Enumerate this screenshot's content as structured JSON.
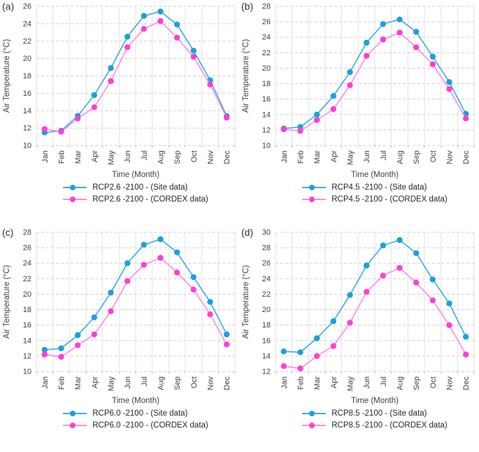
{
  "figure": {
    "xlabel": "Time (Month)",
    "ylabel": "Air Temperature (°C)"
  },
  "colors": {
    "site_line": "#35AEE4",
    "site_marker": "#1BA0DC",
    "cordex_line": "#FF8BE4",
    "cordex_marker": "#FF3ED6",
    "grid_dashed": "#cfcfcf",
    "grid_vertical": "#e2e2e2",
    "axis_text": "#3f3f3f"
  },
  "chart_data": [
    {
      "type": "line",
      "panel_label": "(a)",
      "xlabel": "Time (Month)",
      "ylabel": "Air Temperature (°C)",
      "categories": [
        "Jan",
        "Feb",
        "Mar",
        "Apr",
        "May",
        "Jun",
        "Jul",
        "Aug",
        "Sep",
        "Oct",
        "Nov",
        "Dec"
      ],
      "ylim": [
        10,
        26
      ],
      "ytick_step": 2,
      "grid": "horizontal-dashed, vertical-solid",
      "legend_position": "bottom",
      "series": [
        {
          "name": "RCP2.6 -2100 - (Site data)",
          "line_color": "#35AEE4",
          "marker_color": "#1BA0DC",
          "values": [
            11.5,
            11.7,
            13.4,
            15.8,
            18.9,
            22.5,
            24.9,
            25.4,
            23.9,
            20.9,
            17.5,
            13.4
          ]
        },
        {
          "name": "RCP2.6 -2100 - (CORDEX data)",
          "line_color": "#FF8BE4",
          "marker_color": "#FF3ED6",
          "values": [
            11.9,
            11.6,
            13.1,
            14.4,
            17.4,
            21.3,
            23.4,
            24.3,
            22.4,
            20.2,
            17.0,
            13.2
          ]
        }
      ]
    },
    {
      "type": "line",
      "panel_label": "(b)",
      "xlabel": "Time (Month)",
      "ylabel": "Air Temperature (°C)",
      "categories": [
        "Jan",
        "Feb",
        "Mar",
        "Apr",
        "May",
        "Jun",
        "Jul",
        "Aug",
        "Sep",
        "Oct",
        "Nov",
        "Dec"
      ],
      "ylim": [
        10,
        28
      ],
      "ytick_step": 2,
      "grid": "horizontal-dashed, vertical-solid",
      "legend_position": "bottom",
      "series": [
        {
          "name": "RCP4.5 -2100 - (Site data)",
          "line_color": "#35AEE4",
          "marker_color": "#1BA0DC",
          "values": [
            12.2,
            12.4,
            14.0,
            16.4,
            19.5,
            23.3,
            25.7,
            26.3,
            24.7,
            21.5,
            18.2,
            14.1
          ]
        },
        {
          "name": "RCP4.5 -2100 - (CORDEX data)",
          "line_color": "#FF8BE4",
          "marker_color": "#FF3ED6",
          "values": [
            12.1,
            11.9,
            13.3,
            14.7,
            17.8,
            21.6,
            23.7,
            24.6,
            22.7,
            20.5,
            17.3,
            13.5
          ]
        }
      ]
    },
    {
      "type": "line",
      "panel_label": "(c)",
      "xlabel": "Time (Month)",
      "ylabel": "Air Temperature (°C)",
      "categories": [
        "Jan",
        "Feb",
        "Mar",
        "Apr",
        "May",
        "Jun",
        "Jul",
        "Aug",
        "Sep",
        "Oct",
        "Nov",
        "Dec"
      ],
      "ylim": [
        10,
        28
      ],
      "ytick_step": 2,
      "grid": "horizontal-dashed, vertical-solid",
      "legend_position": "bottom",
      "series": [
        {
          "name": "RCP6.0 -2100 - (Site data)",
          "line_color": "#35AEE4",
          "marker_color": "#1BA0DC",
          "values": [
            12.8,
            13.0,
            14.7,
            17.0,
            20.2,
            24.0,
            26.4,
            27.1,
            25.4,
            22.2,
            19.0,
            14.8
          ]
        },
        {
          "name": "RCP6.0 -2100 - (CORDEX data)",
          "line_color": "#FF8BE4",
          "marker_color": "#FF3ED6",
          "values": [
            12.2,
            11.9,
            13.4,
            14.8,
            17.8,
            21.7,
            23.8,
            24.7,
            22.8,
            20.6,
            17.4,
            13.5
          ]
        }
      ]
    },
    {
      "type": "line",
      "panel_label": "(d)",
      "xlabel": "Time (Month)",
      "ylabel": "Air Temperature (°C)",
      "categories": [
        "Jan",
        "Feb",
        "Mar",
        "Apr",
        "May",
        "Jun",
        "Jul",
        "Aug",
        "Sep",
        "Oct",
        "Nov",
        "Dec"
      ],
      "ylim": [
        12,
        30
      ],
      "ytick_step": 2,
      "grid": "horizontal-dashed, vertical-solid",
      "legend_position": "bottom",
      "series": [
        {
          "name": "RCP8.5 -2100 - (Site data)",
          "line_color": "#35AEE4",
          "marker_color": "#1BA0DC",
          "values": [
            14.6,
            14.5,
            16.3,
            18.5,
            21.9,
            25.7,
            28.3,
            29.0,
            27.3,
            23.9,
            20.8,
            16.5
          ]
        },
        {
          "name": "RCP8.5 -2100 - (CORDEX data)",
          "line_color": "#FF8BE4",
          "marker_color": "#FF3ED6",
          "values": [
            12.7,
            12.4,
            14.0,
            15.3,
            18.3,
            22.3,
            24.4,
            25.4,
            23.5,
            21.2,
            18.0,
            14.2
          ]
        }
      ]
    }
  ]
}
